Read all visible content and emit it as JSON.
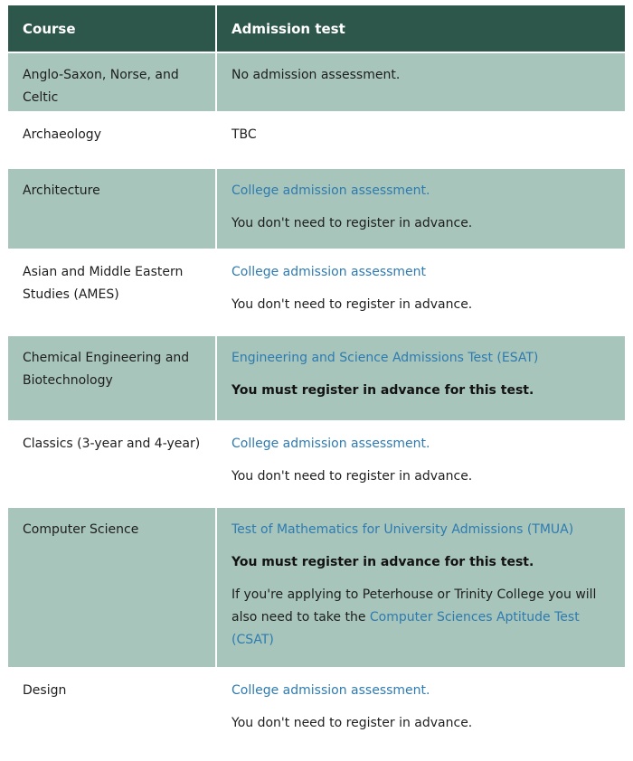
{
  "table": {
    "headers": [
      "Course",
      "Admission test"
    ],
    "rows": [
      {
        "course": "Anglo-Saxon, Norse, and Celtic",
        "admission": [
          [
            {
              "type": "plain",
              "text": "No admission assessment."
            }
          ]
        ]
      },
      {
        "course": "Archaeology",
        "admission": [
          [
            {
              "type": "plain",
              "text": "TBC"
            }
          ]
        ]
      },
      {
        "course": "Architecture",
        "admission": [
          [
            {
              "type": "link",
              "text": "College admission assessment."
            }
          ],
          [
            {
              "type": "plain",
              "text": "You don't need to register in advance."
            }
          ]
        ]
      },
      {
        "course": "Asian and Middle Eastern Studies (AMES)",
        "admission": [
          [
            {
              "type": "link",
              "text": "College admission assessment"
            }
          ],
          [
            {
              "type": "plain",
              "text": "You don't need to register in advance."
            }
          ]
        ]
      },
      {
        "course": "Chemical Engineering and Biotechnology",
        "admission": [
          [
            {
              "type": "link",
              "text": "Engineering and Science Admissions Test (ESAT)"
            }
          ],
          [
            {
              "type": "bold",
              "text": "You must register in advance for this test."
            }
          ]
        ]
      },
      {
        "course": "Classics (3-year and 4-year)",
        "admission": [
          [
            {
              "type": "link",
              "text": "College admission assessment."
            }
          ],
          [
            {
              "type": "plain",
              "text": "You don't need to register in advance."
            }
          ]
        ]
      },
      {
        "course": "Computer Science",
        "admission": [
          [
            {
              "type": "link",
              "text": "Test of Mathematics for University Admissions (TMUA)"
            }
          ],
          [
            {
              "type": "bold",
              "text": "You must register in advance for this test."
            }
          ],
          [
            {
              "type": "plain",
              "text": "If you're applying to Peterhouse or Trinity College you will also need to take the "
            },
            {
              "type": "link",
              "text": "Computer Sciences Aptitude Test (CSAT)"
            }
          ]
        ]
      },
      {
        "course": "Design",
        "admission": [
          [
            {
              "type": "link",
              "text": "College admission assessment."
            }
          ],
          [
            {
              "type": "plain",
              "text": "You don't need to register in advance."
            }
          ]
        ]
      }
    ]
  },
  "colors": {
    "header_bg": "#2e574b",
    "header_text": "#ffffff",
    "row_highlight_bg": "#a7c5ba",
    "row_plain_bg": "#ffffff",
    "link": "#2e7bb1",
    "body_text": "#1e1e1e"
  }
}
